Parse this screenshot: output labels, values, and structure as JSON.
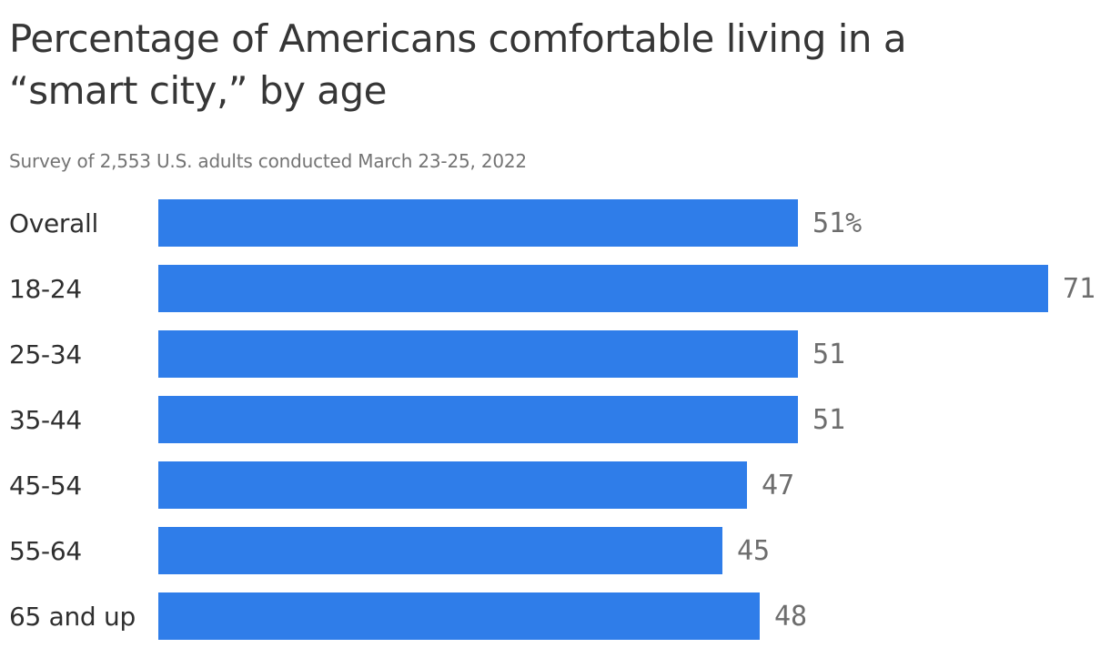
{
  "header": {
    "title": "Percentage of Americans comfortable living in a “smart city,” by age",
    "title_lines": [
      "Percentage of Americans comfortable living in a",
      "“smart city,” by age"
    ],
    "subtitle": "Survey of 2,553 U.S. adults conducted March 23-25, 2022"
  },
  "chart_data": {
    "type": "bar",
    "orientation": "horizontal",
    "title": "Percentage of Americans comfortable living in a “smart city,” by age",
    "subtitle": "Survey of 2,553 U.S. adults conducted March 23-25, 2022",
    "categories": [
      "Overall",
      "18-24",
      "25-34",
      "35-44",
      "45-54",
      "55-64",
      "65 and up"
    ],
    "values": [
      51,
      71,
      51,
      51,
      47,
      45,
      48
    ],
    "value_labels": [
      "51%",
      "71",
      "51",
      "51",
      "47",
      "45",
      "48"
    ],
    "unit": "percent",
    "xlim": [
      0,
      71
    ],
    "grid": false,
    "legend": false,
    "bar_color": "#2f7de9",
    "category_label_color": "#2f2f2f",
    "value_label_color": "#6d6d6d"
  }
}
